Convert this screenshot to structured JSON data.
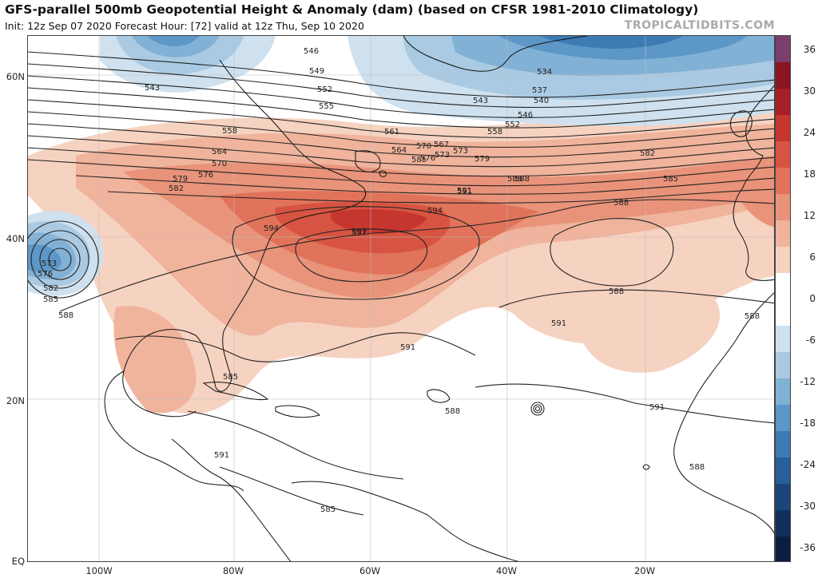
{
  "header": {
    "title": "GFS-parallel 500mb Geopotential Height & Anomaly (dam) (based on CFSR 1981-2010 Climatology)",
    "subtitle": "Init: 12z Sep 07 2020   Forecast Hour: [72]   valid at 12z Thu, Sep 10 2020",
    "brand": "TROPICALTIDBITS.COM"
  },
  "axes": {
    "lat_labels": [
      "60N",
      "40N",
      "20N",
      "EQ"
    ],
    "lon_labels": [
      "100W",
      "80W",
      "60W",
      "40W",
      "20W"
    ]
  },
  "colorbar": {
    "labels": [
      "36",
      "30",
      "24",
      "18",
      "12",
      "6",
      "0",
      "-6",
      "-12",
      "-18",
      "-24",
      "-30",
      "-36"
    ],
    "colors": [
      "#7a3f6e",
      "#8a1521",
      "#a81e27",
      "#c5362f",
      "#d65441",
      "#e0735a",
      "#e8937a",
      "#f0b39c",
      "#f6d2c1",
      "#ffffff",
      "#ffffff",
      "#cfe1ee",
      "#a9cae2",
      "#82b1d6",
      "#5d97c7",
      "#3d7bb5",
      "#285f9a",
      "#1b457a",
      "#10305b",
      "#0a1f40"
    ]
  },
  "contour_labels": [
    "546",
    "549",
    "552",
    "555",
    "543",
    "558",
    "561",
    "564",
    "567",
    "570",
    "573",
    "576",
    "579",
    "582",
    "585",
    "588",
    "591",
    "594",
    "597",
    "534",
    "537",
    "540",
    "543",
    "546",
    "552",
    "558",
    "564",
    "570",
    "573",
    "576",
    "579",
    "582",
    "585",
    "588",
    "591",
    "594",
    "597",
    "573",
    "576",
    "582",
    "585",
    "588",
    "591",
    "588",
    "591",
    "588",
    "591",
    "588",
    "585",
    "591",
    "588",
    "585",
    "588",
    "591"
  ]
}
